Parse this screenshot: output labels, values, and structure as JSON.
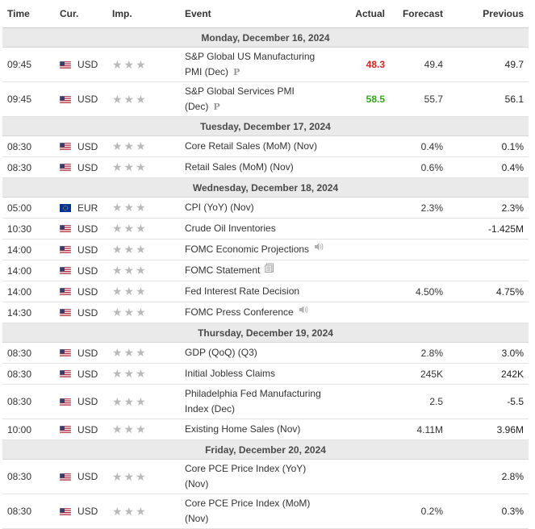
{
  "headers": {
    "time": "Time",
    "cur": "Cur.",
    "imp": "Imp.",
    "event": "Event",
    "actual": "Actual",
    "forecast": "Forecast",
    "previous": "Previous"
  },
  "colors": {
    "actual_red": "#e21f1f",
    "actual_green": "#2eaa12",
    "day_bg": "#eaeaea",
    "star": "#b9b9b9"
  },
  "days": [
    {
      "label": "Monday, December 16, 2024",
      "events": [
        {
          "time": "09:45",
          "currency": "USD",
          "flag": "us-flag-icon",
          "event": "S&P Global US Manufacturing PMI (Dec)",
          "badge": "P",
          "actual": "48.3",
          "actual_color": "red",
          "forecast": "49.4",
          "previous": "49.7",
          "tall": true
        },
        {
          "time": "09:45",
          "currency": "USD",
          "flag": "us-flag-icon",
          "event": "S&P Global Services PMI (Dec)",
          "badge": "P",
          "actual": "58.5",
          "actual_color": "green",
          "forecast": "55.7",
          "previous": "56.1",
          "tall": true
        }
      ]
    },
    {
      "label": "Tuesday, December 17, 2024",
      "events": [
        {
          "time": "08:30",
          "currency": "USD",
          "flag": "us-flag-icon",
          "event": "Core Retail Sales (MoM) (Nov)",
          "actual": "",
          "forecast": "0.4%",
          "previous": "0.1%"
        },
        {
          "time": "08:30",
          "currency": "USD",
          "flag": "us-flag-icon",
          "event": "Retail Sales (MoM) (Nov)",
          "actual": "",
          "forecast": "0.6%",
          "previous": "0.4%"
        }
      ]
    },
    {
      "label": "Wednesday, December 18, 2024",
      "events": [
        {
          "time": "05:00",
          "currency": "EUR",
          "flag": "eu-flag-icon",
          "event": "CPI (YoY) (Nov)",
          "actual": "",
          "forecast": "2.3%",
          "previous": "2.3%"
        },
        {
          "time": "10:30",
          "currency": "USD",
          "flag": "us-flag-icon",
          "event": "Crude Oil Inventories",
          "actual": "",
          "forecast": "",
          "previous": "-1.425M"
        },
        {
          "time": "14:00",
          "currency": "USD",
          "flag": "us-flag-icon",
          "event": "FOMC Economic Projections",
          "icon": "speaker-icon",
          "actual": "",
          "forecast": "",
          "previous": ""
        },
        {
          "time": "14:00",
          "currency": "USD",
          "flag": "us-flag-icon",
          "event": "FOMC Statement",
          "icon": "document-icon",
          "actual": "",
          "forecast": "",
          "previous": ""
        },
        {
          "time": "14:00",
          "currency": "USD",
          "flag": "us-flag-icon",
          "event": "Fed Interest Rate Decision",
          "actual": "",
          "forecast": "4.50%",
          "previous": "4.75%"
        },
        {
          "time": "14:30",
          "currency": "USD",
          "flag": "us-flag-icon",
          "event": "FOMC Press Conference",
          "icon": "speaker-icon",
          "actual": "",
          "forecast": "",
          "previous": ""
        }
      ]
    },
    {
      "label": "Thursday, December 19, 2024",
      "events": [
        {
          "time": "08:30",
          "currency": "USD",
          "flag": "us-flag-icon",
          "event": "GDP (QoQ) (Q3)",
          "actual": "",
          "forecast": "2.8%",
          "previous": "3.0%"
        },
        {
          "time": "08:30",
          "currency": "USD",
          "flag": "us-flag-icon",
          "event": "Initial Jobless Claims",
          "actual": "",
          "forecast": "245K",
          "previous": "242K"
        },
        {
          "time": "08:30",
          "currency": "USD",
          "flag": "us-flag-icon",
          "event": "Philadelphia Fed Manufacturing Index (Dec)",
          "actual": "",
          "forecast": "2.5",
          "previous": "-5.5",
          "tall": true
        },
        {
          "time": "10:00",
          "currency": "USD",
          "flag": "us-flag-icon",
          "event": "Existing Home Sales (Nov)",
          "actual": "",
          "forecast": "4.11M",
          "previous": "3.96M"
        }
      ]
    },
    {
      "label": "Friday, December 20, 2024",
      "events": [
        {
          "time": "08:30",
          "currency": "USD",
          "flag": "us-flag-icon",
          "event": "Core PCE Price Index (YoY) (Nov)",
          "actual": "",
          "forecast": "",
          "previous": "2.8%",
          "tall": true
        },
        {
          "time": "08:30",
          "currency": "USD",
          "flag": "us-flag-icon",
          "event": "Core PCE Price Index (MoM) (Nov)",
          "actual": "",
          "forecast": "0.2%",
          "previous": "0.3%",
          "tall": true
        }
      ]
    }
  ]
}
